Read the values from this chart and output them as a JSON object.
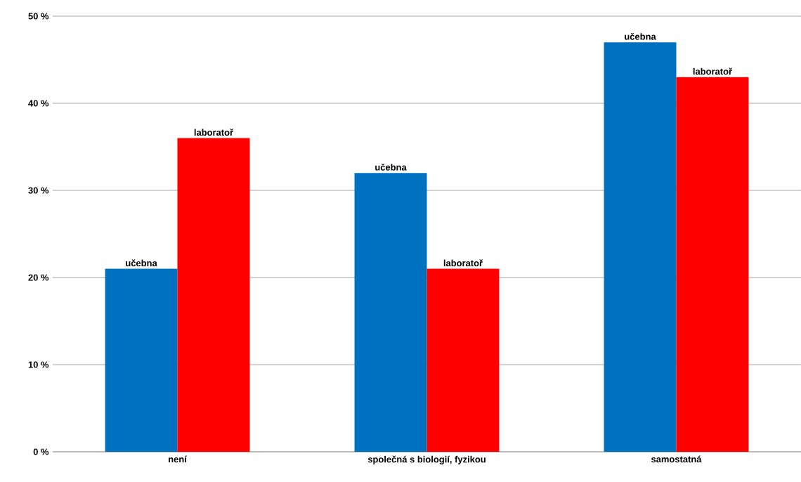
{
  "chart_data": {
    "type": "bar",
    "categories": [
      "není",
      "společná s biologií, fyzikou",
      "samostatná"
    ],
    "series": [
      {
        "name": "učebna",
        "color": "#0070c0",
        "values": [
          21,
          32,
          47
        ]
      },
      {
        "name": "laboratoř",
        "color": "#ff0000",
        "values": [
          36,
          21,
          43
        ]
      }
    ],
    "ylim": [
      0,
      50
    ],
    "yticks": [
      {
        "value": 0,
        "label": "0 %"
      },
      {
        "value": 10,
        "label": "10 %"
      },
      {
        "value": 20,
        "label": "20 %"
      },
      {
        "value": 30,
        "label": "30 %"
      },
      {
        "value": 40,
        "label": "40 %"
      },
      {
        "value": 50,
        "label": "50 %"
      }
    ],
    "grid": "y",
    "legend": false
  }
}
